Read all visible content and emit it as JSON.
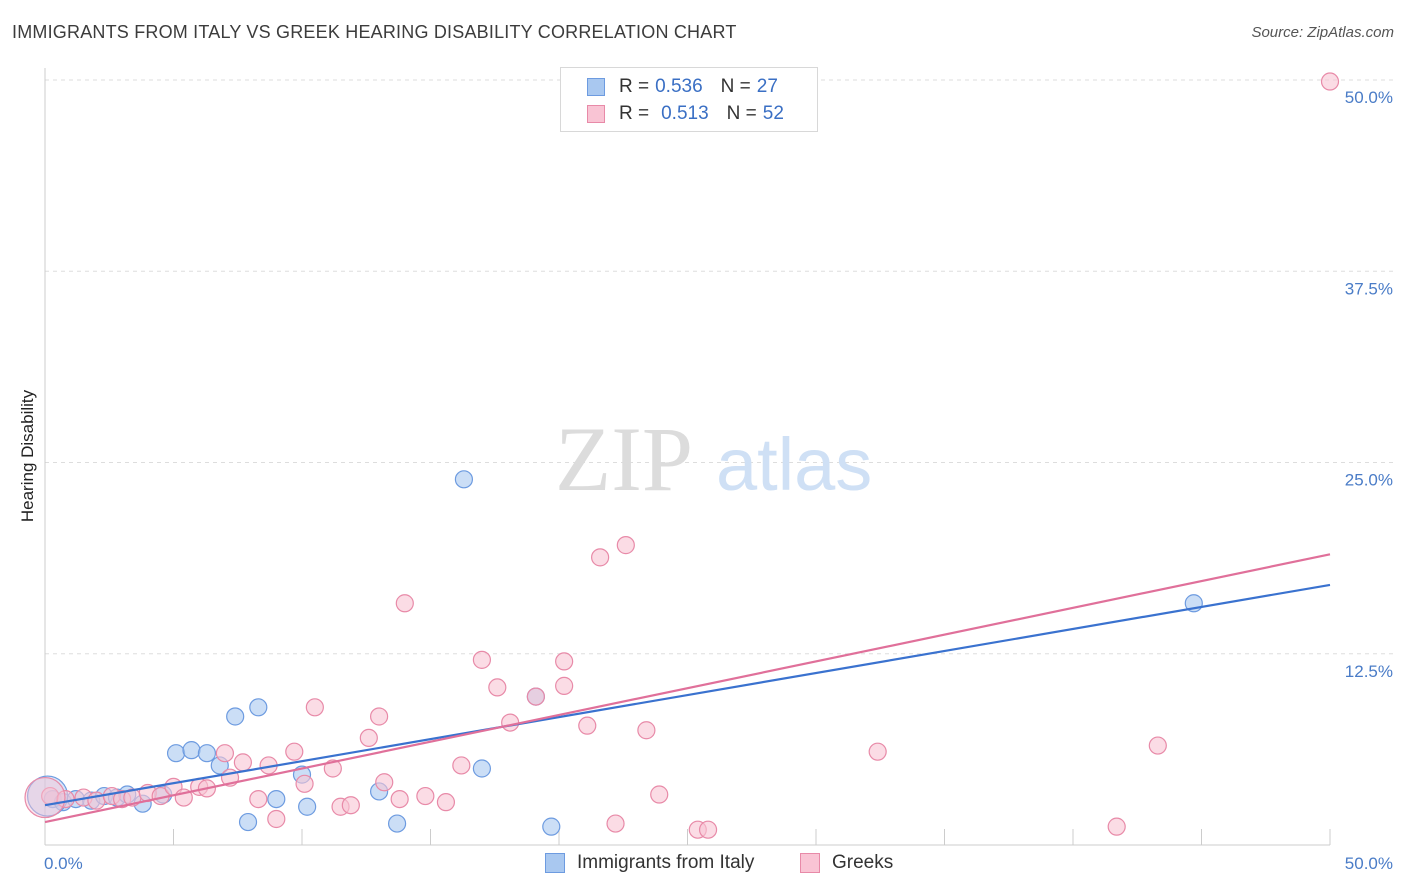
{
  "header": {
    "title": "IMMIGRANTS FROM ITALY VS GREEK HEARING DISABILITY CORRELATION CHART",
    "source": "Source: ZipAtlas.com"
  },
  "watermark": {
    "zip": "ZIP",
    "atlas": "atlas"
  },
  "legend": {
    "rows": [
      {
        "r_label": "R =",
        "r_value": "0.536",
        "n_label": "N =",
        "n_value": "27",
        "color": "#a9c8f0",
        "border": "#6d9be0"
      },
      {
        "r_label": "R =",
        "r_value": "0.513",
        "n_label": "N =",
        "n_value": "52",
        "color": "#f9c4d4",
        "border": "#e88aa8"
      }
    ]
  },
  "bottom_legend": {
    "series1": "Immigrants from Italy",
    "series2": "Greeks"
  },
  "colors": {
    "italy_fill": "#a9c8f0",
    "italy_stroke": "#6d9be0",
    "italy_line": "#3a72cf",
    "greek_fill": "#f9c4d4",
    "greek_stroke": "#e88aa8",
    "greek_line": "#e0709a",
    "tick_text": "#4a7cc7",
    "grid": "#dddddd"
  },
  "chart_data": {
    "type": "scatter",
    "title": "IMMIGRANTS FROM ITALY VS GREEK HEARING DISABILITY CORRELATION CHART",
    "xlabel": "",
    "ylabel": "Hearing Disability",
    "xlim": [
      0,
      50
    ],
    "ylim": [
      0,
      50
    ],
    "x_tick_labels": [
      "0.0%",
      "50.0%"
    ],
    "y_ticks": [
      12.5,
      25.0,
      37.5,
      50.0
    ],
    "y_tick_labels": [
      "12.5%",
      "25.0%",
      "37.5%",
      "50.0%"
    ],
    "grid": true,
    "legend_position": "top-center",
    "series": [
      {
        "name": "Immigrants from Italy",
        "points": [
          [
            0.3,
            3.0
          ],
          [
            0.7,
            2.8
          ],
          [
            1.2,
            3.0
          ],
          [
            1.8,
            2.9
          ],
          [
            2.3,
            3.2
          ],
          [
            2.8,
            3.1
          ],
          [
            3.2,
            3.3
          ],
          [
            3.8,
            2.7
          ],
          [
            4.6,
            3.3
          ],
          [
            5.1,
            6.0
          ],
          [
            5.7,
            6.2
          ],
          [
            6.3,
            6.0
          ],
          [
            6.8,
            5.2
          ],
          [
            7.4,
            8.4
          ],
          [
            7.9,
            1.5
          ],
          [
            8.3,
            9.0
          ],
          [
            9.0,
            3.0
          ],
          [
            10.0,
            4.6
          ],
          [
            10.2,
            2.5
          ],
          [
            13.0,
            3.5
          ],
          [
            13.7,
            1.4
          ],
          [
            16.3,
            23.9
          ],
          [
            17.0,
            5.0
          ],
          [
            19.1,
            9.7
          ],
          [
            19.7,
            1.2
          ],
          [
            44.7,
            15.8
          ],
          [
            0.1,
            3.2
          ]
        ],
        "trend": [
          [
            0,
            2.6
          ],
          [
            50,
            17.0
          ]
        ]
      },
      {
        "name": "Greeks",
        "points": [
          [
            0.2,
            3.2
          ],
          [
            0.8,
            3.0
          ],
          [
            1.5,
            3.1
          ],
          [
            2.0,
            2.9
          ],
          [
            2.6,
            3.2
          ],
          [
            3.0,
            3.0
          ],
          [
            3.4,
            3.1
          ],
          [
            4.0,
            3.4
          ],
          [
            4.5,
            3.2
          ],
          [
            5.0,
            3.8
          ],
          [
            5.4,
            3.1
          ],
          [
            6.0,
            3.8
          ],
          [
            6.3,
            3.7
          ],
          [
            7.0,
            6.0
          ],
          [
            7.2,
            4.4
          ],
          [
            7.7,
            5.4
          ],
          [
            8.3,
            3.0
          ],
          [
            8.7,
            5.2
          ],
          [
            9.0,
            1.7
          ],
          [
            9.7,
            6.1
          ],
          [
            10.1,
            4.0
          ],
          [
            10.5,
            9.0
          ],
          [
            11.2,
            5.0
          ],
          [
            11.5,
            2.5
          ],
          [
            11.9,
            2.6
          ],
          [
            12.6,
            7.0
          ],
          [
            13.0,
            8.4
          ],
          [
            13.2,
            4.1
          ],
          [
            13.8,
            3.0
          ],
          [
            14.0,
            15.8
          ],
          [
            14.8,
            3.2
          ],
          [
            15.6,
            2.8
          ],
          [
            16.2,
            5.2
          ],
          [
            17.0,
            12.1
          ],
          [
            17.6,
            10.3
          ],
          [
            18.1,
            8.0
          ],
          [
            19.1,
            9.7
          ],
          [
            20.2,
            12.0
          ],
          [
            20.2,
            10.4
          ],
          [
            21.1,
            7.8
          ],
          [
            21.6,
            18.8
          ],
          [
            22.2,
            1.4
          ],
          [
            22.6,
            19.6
          ],
          [
            23.4,
            7.5
          ],
          [
            23.9,
            3.3
          ],
          [
            25.4,
            1.0
          ],
          [
            25.8,
            1.0
          ],
          [
            32.4,
            6.1
          ],
          [
            41.7,
            1.2
          ],
          [
            43.3,
            6.5
          ],
          [
            50.0,
            49.9
          ],
          [
            0.0,
            3.1
          ]
        ],
        "trend": [
          [
            0,
            1.5
          ],
          [
            50,
            19.0
          ]
        ]
      }
    ]
  }
}
